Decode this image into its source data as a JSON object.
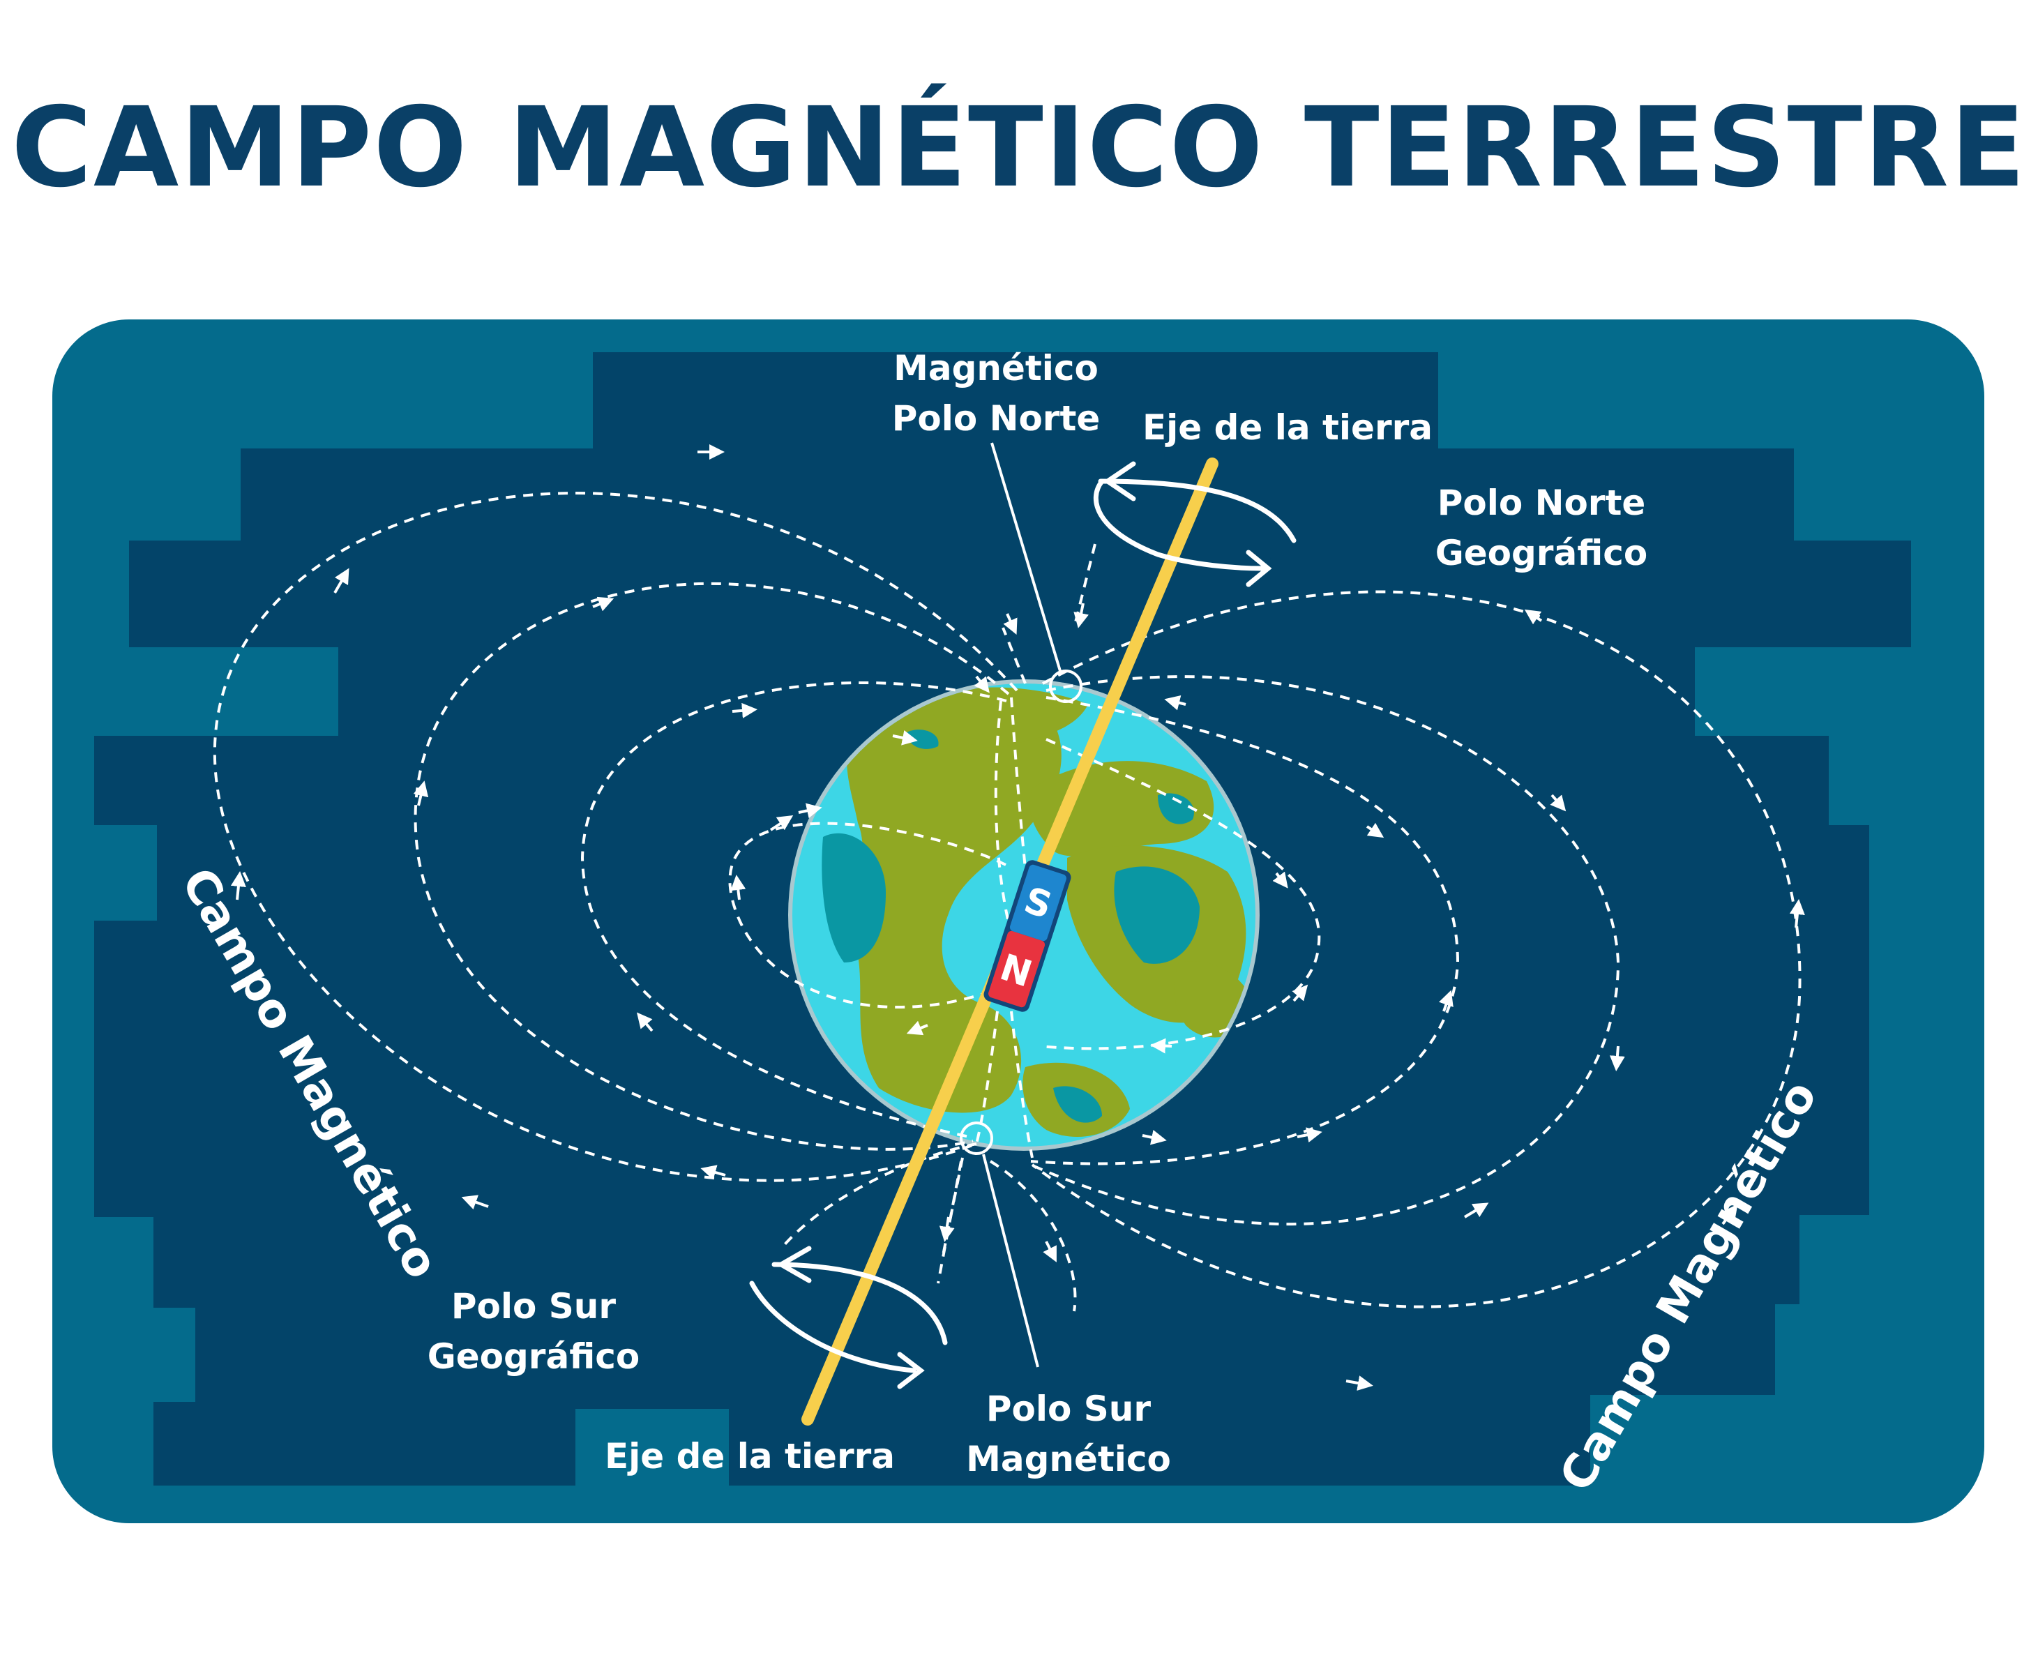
{
  "title": "CAMPO MAGNÉTICO TERRESTRE",
  "labels": {
    "magnetic_north_line1": "Magnético",
    "magnetic_north_line2": "Polo Norte",
    "earth_axis_top": "Eje de la tierra",
    "geographic_north_line1": "Polo Norte",
    "geographic_north_line2": "Geográfico",
    "field_left": "Campo Magnético",
    "field_right": "Campo Magnético",
    "geographic_south_line1": "Polo Sur",
    "geographic_south_line2": "Geográfico",
    "earth_axis_bottom": "Eje de la tierra",
    "magnetic_south_line1": "Polo Sur",
    "magnetic_south_line2": "Magnético"
  },
  "magnet": {
    "top_pole": "S",
    "bottom_pole": "N"
  },
  "colors": {
    "title": "#0a4067",
    "panel_outer": "#046b8c",
    "panel_inner": "#034469",
    "ocean": "#3dd6e6",
    "land": "#90a823",
    "lake": "#0a97a3",
    "axis": "#f7cf4c",
    "magnet_s": "#1e86cf",
    "magnet_n": "#e8333f"
  }
}
